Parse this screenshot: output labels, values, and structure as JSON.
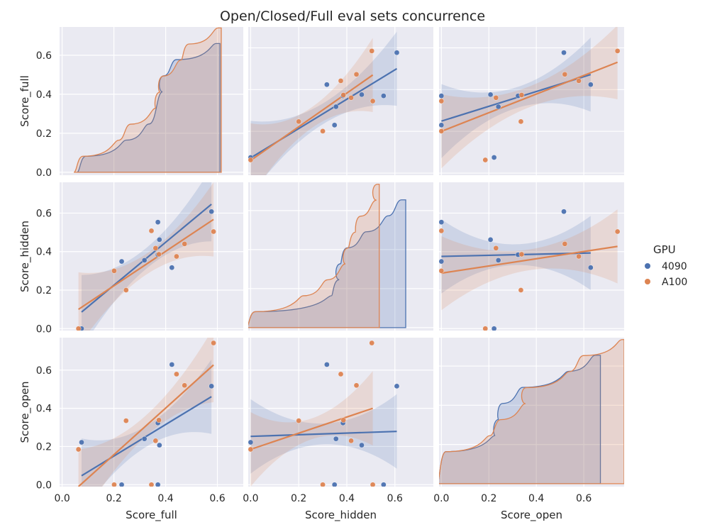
{
  "chart_data": {
    "type": "scatter",
    "title": "Open/Closed/Full eval sets concurrence",
    "variables": [
      "Score_full",
      "Score_hidden",
      "Score_open"
    ],
    "axis_ranges": {
      "Score_full": [
        -0.01,
        0.7
      ],
      "Score_hidden": [
        -0.01,
        0.76
      ],
      "Score_open": [
        -0.01,
        0.77
      ]
    },
    "ticks": {
      "Score_full": [
        0.0,
        0.2,
        0.4,
        0.6
      ],
      "Score_hidden": [
        0.0,
        0.2,
        0.4,
        0.6
      ],
      "Score_open": [
        0.0,
        0.2,
        0.4,
        0.6
      ]
    },
    "tick_labels": {
      "Score_full": [
        "0.0",
        "0.2",
        "0.4",
        "0.6"
      ],
      "Score_hidden": [
        "0.0",
        "0.2",
        "0.4",
        "0.6"
      ],
      "Score_open": [
        "0.0",
        "0.2",
        "0.4",
        "0.6"
      ]
    },
    "diagonal": "cumulative step distribution",
    "off_diagonal": "scatter with regression line and confidence band",
    "grid": true,
    "legend_title": "GPU",
    "legend_placement": "right",
    "series": [
      {
        "name": "4090",
        "color": "#4c72b0",
        "points": [
          {
            "Score_full": 0.075,
            "Score_hidden": 0.0,
            "Score_open": 0.222
          },
          {
            "Score_full": 0.23,
            "Score_hidden": 0.349,
            "Score_open": 0.0
          },
          {
            "Score_full": 0.318,
            "Score_hidden": 0.355,
            "Score_open": 0.24
          },
          {
            "Score_full": 0.37,
            "Score_hidden": 0.384,
            "Score_open": 0.323
          },
          {
            "Score_full": 0.376,
            "Score_hidden": 0.462,
            "Score_open": 0.207
          },
          {
            "Score_full": 0.37,
            "Score_hidden": 0.553,
            "Score_open": 0.0
          },
          {
            "Score_full": 0.424,
            "Score_hidden": 0.317,
            "Score_open": 0.629
          },
          {
            "Score_full": 0.577,
            "Score_hidden": 0.608,
            "Score_open": 0.516
          }
        ],
        "regression": {
          "full_vs_hidden": {
            "x": [
              0.075,
              0.577
            ],
            "y": [
              0.086,
              0.646
            ]
          },
          "full_vs_open": {
            "x": [
              0.075,
              0.577
            ],
            "y": [
              0.047,
              0.461
            ]
          },
          "hidden_vs_full": {
            "x": [
              0.0,
              0.608
            ],
            "y": [
              0.073,
              0.5
            ]
          },
          "hidden_vs_open": {
            "x": [
              0.0,
              0.608
            ],
            "y": [
              0.253,
              0.279
            ]
          },
          "open_vs_full": {
            "x": [
              0.0,
              0.629
            ],
            "y": [
              0.249,
              0.472
            ]
          },
          "open_vs_hidden": {
            "x": [
              0.0,
              0.629
            ],
            "y": [
              0.375,
              0.393
            ]
          }
        },
        "ecdf": {
          "Score_full": {
            "x": [
              0.075,
              0.23,
              0.318,
              0.37,
              0.37,
              0.376,
              0.424,
              0.577
            ],
            "end": 0.61,
            "cap": 0.66
          },
          "Score_hidden": {
            "x": [
              0.0,
              0.317,
              0.349,
              0.355,
              0.384,
              0.462,
              0.553,
              0.608
            ],
            "end": 0.645,
            "cap": 0.655
          },
          "Score_open": {
            "x": [
              0.0,
              0.0,
              0.207,
              0.222,
              0.24,
              0.323,
              0.516,
              0.629
            ],
            "end": 0.67,
            "cap": 0.655
          }
        }
      },
      {
        "name": "A100",
        "color": "#dd8452",
        "points": [
          {
            "Score_full": 0.063,
            "Score_hidden": 0.0,
            "Score_open": 0.185
          },
          {
            "Score_full": 0.201,
            "Score_hidden": 0.3,
            "Score_open": 0.0
          },
          {
            "Score_full": 0.247,
            "Score_hidden": 0.2,
            "Score_open": 0.335
          },
          {
            "Score_full": 0.345,
            "Score_hidden": 0.508,
            "Score_open": 0.0
          },
          {
            "Score_full": 0.361,
            "Score_hidden": 0.418,
            "Score_open": 0.23
          },
          {
            "Score_full": 0.374,
            "Score_hidden": 0.386,
            "Score_open": 0.338
          },
          {
            "Score_full": 0.442,
            "Score_hidden": 0.375,
            "Score_open": 0.579
          },
          {
            "Score_full": 0.473,
            "Score_hidden": 0.44,
            "Score_open": 0.52
          },
          {
            "Score_full": 0.585,
            "Score_hidden": 0.504,
            "Score_open": 0.742
          }
        ],
        "regression": {
          "full_vs_hidden": {
            "x": [
              0.063,
              0.585
            ],
            "y": [
              0.1,
              0.567
            ]
          },
          "full_vs_open": {
            "x": [
              0.063,
              0.585
            ],
            "y": [
              -0.01,
              0.627
            ]
          },
          "hidden_vs_full": {
            "x": [
              0.0,
              0.508
            ],
            "y": [
              0.061,
              0.47
            ]
          },
          "hidden_vs_open": {
            "x": [
              0.0,
              0.508
            ],
            "y": [
              0.185,
              0.4
            ]
          },
          "open_vs_full": {
            "x": [
              0.0,
              0.742
            ],
            "y": [
              0.2,
              0.531
            ]
          },
          "open_vs_hidden": {
            "x": [
              0.0,
              0.742
            ],
            "y": [
              0.288,
              0.427
            ]
          }
        },
        "ecdf": {
          "Score_full": {
            "x": [
              0.063,
              0.201,
              0.247,
              0.345,
              0.361,
              0.374,
              0.442,
              0.473,
              0.585
            ],
            "end": 0.615,
            "cap": 0.74
          },
          "Score_hidden": {
            "x": [
              0.0,
              0.2,
              0.3,
              0.375,
              0.386,
              0.418,
              0.44,
              0.504,
              0.508
            ],
            "end": 0.535,
            "cap": 0.735
          },
          "Score_open": {
            "x": [
              0.0,
              0.0,
              0.185,
              0.23,
              0.335,
              0.338,
              0.52,
              0.579,
              0.742
            ],
            "end": 0.77,
            "cap": 0.735
          }
        }
      }
    ]
  }
}
